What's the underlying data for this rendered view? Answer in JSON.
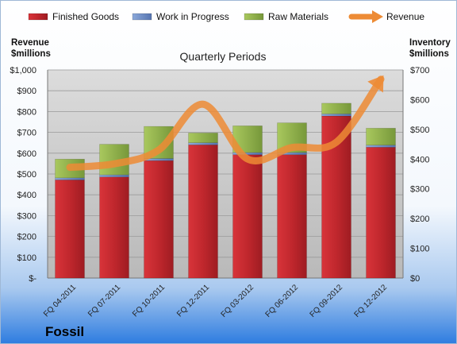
{
  "chart_data": {
    "type": "bar",
    "stacked": true,
    "title": "Quarterly Periods",
    "company": "Fossil",
    "ylabel_left": [
      "Revenue",
      "$millions"
    ],
    "ylabel_right": [
      "Inventory",
      "$millions"
    ],
    "categories": [
      "FQ 04-2011",
      "FQ 07-2011",
      "FQ 10-2011",
      "FQ 12-2011",
      "FQ 03-2012",
      "FQ 06-2012",
      "FQ 09-2012",
      "FQ 12-2012"
    ],
    "series": [
      {
        "name": "Finished Goods",
        "axis": "right",
        "color": "#c0272d",
        "values": [
          330,
          340,
          395,
          448,
          415,
          415,
          545,
          440
        ]
      },
      {
        "name": "Work in Progress",
        "axis": "right",
        "color": "#6d8fc9",
        "values": [
          7,
          7,
          7,
          7,
          7,
          7,
          7,
          7
        ]
      },
      {
        "name": "Raw Materials",
        "axis": "right",
        "color": "#93b84a",
        "values": [
          63,
          103,
          108,
          33,
          90,
          100,
          36,
          57
        ]
      },
      {
        "name": "Revenue",
        "axis": "left",
        "type": "line",
        "color": "#ed8b35",
        "values": [
          532,
          549,
          615,
          835,
          572,
          627,
          653,
          955
        ]
      }
    ],
    "ylim_left": [
      0,
      1000
    ],
    "ylim_right": [
      0,
      700
    ],
    "left_ticks": [
      "$-",
      "$100",
      "$200",
      "$300",
      "$400",
      "$500",
      "$600",
      "$700",
      "$800",
      "$900",
      "$1,000"
    ],
    "right_ticks": [
      "$0",
      "$100",
      "$200",
      "$300",
      "$400",
      "$500",
      "$600",
      "$700"
    ],
    "grid": true,
    "legend_position": "top"
  }
}
